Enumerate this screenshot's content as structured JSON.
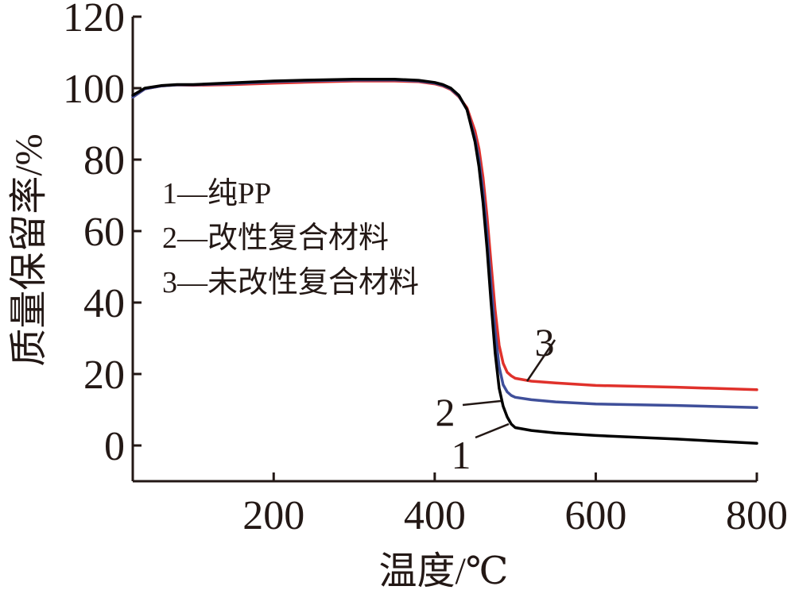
{
  "chart_data": {
    "type": "line",
    "xlabel": "温度/℃",
    "ylabel": "质量保留率/%",
    "xlim": [
      25,
      800
    ],
    "ylim": [
      -10,
      120
    ],
    "xticks": [
      200,
      400,
      600,
      800
    ],
    "xtick_labels": [
      "200",
      "400",
      "600",
      "800"
    ],
    "yticks": [
      0,
      20,
      40,
      60,
      80,
      100,
      120
    ],
    "ytick_labels": [
      "0",
      "20",
      "40",
      "60",
      "80",
      "100",
      "120"
    ],
    "grid": false,
    "legend_position": "upper-left",
    "legend": [
      {
        "label": "1—纯PP"
      },
      {
        "label": "2—改性复合材料"
      },
      {
        "label": "3—未改性复合材料"
      }
    ],
    "series": [
      {
        "name": "1",
        "label": "1",
        "color": "#000000",
        "x": [
          25,
          40,
          60,
          80,
          100,
          150,
          200,
          250,
          300,
          350,
          380,
          400,
          410,
          420,
          430,
          440,
          450,
          455,
          460,
          465,
          470,
          475,
          480,
          485,
          490,
          495,
          500,
          520,
          550,
          600,
          700,
          800
        ],
        "y": [
          98,
          100,
          100.7,
          101,
          101,
          101.5,
          102,
          102.3,
          102.5,
          102.5,
          102.2,
          101.6,
          101,
          100,
          98,
          94,
          85,
          78,
          68,
          55,
          40,
          26,
          16,
          11,
          8,
          6,
          5,
          4.2,
          3.5,
          2.8,
          1.8,
          0.6
        ]
      },
      {
        "name": "2",
        "label": "2",
        "color": "#3f4f9a",
        "x": [
          25,
          40,
          60,
          80,
          100,
          150,
          200,
          250,
          300,
          350,
          380,
          400,
          410,
          420,
          430,
          440,
          450,
          455,
          460,
          465,
          470,
          475,
          480,
          485,
          490,
          495,
          500,
          520,
          550,
          600,
          700,
          800
        ],
        "y": [
          97.5,
          99.8,
          100.6,
          100.9,
          100.9,
          101.3,
          101.8,
          102.1,
          102.3,
          102.3,
          102,
          101.4,
          100.8,
          99.8,
          97.8,
          94,
          86,
          80,
          71,
          59,
          45,
          32,
          22,
          17,
          15,
          14,
          13.5,
          12.8,
          12.2,
          11.6,
          11.2,
          10.6
        ]
      },
      {
        "name": "3",
        "label": "3",
        "color": "#e0312b",
        "x": [
          25,
          40,
          60,
          80,
          100,
          150,
          200,
          250,
          300,
          350,
          380,
          400,
          410,
          420,
          430,
          440,
          450,
          455,
          460,
          465,
          470,
          475,
          480,
          485,
          490,
          495,
          500,
          520,
          550,
          600,
          700,
          800
        ],
        "y": [
          97.5,
          99.8,
          100.6,
          100.9,
          100.8,
          101,
          101.4,
          101.7,
          102,
          102,
          101.8,
          101.2,
          100.6,
          99.6,
          97.6,
          94.5,
          88,
          83,
          75,
          64,
          51,
          38,
          28,
          23,
          20.5,
          19.5,
          18.8,
          18,
          17.5,
          16.8,
          16.3,
          15.6
        ]
      }
    ],
    "annotations": [
      {
        "text": "3",
        "series": "3"
      },
      {
        "text": "2",
        "series": "2"
      },
      {
        "text": "1",
        "series": "1"
      }
    ]
  }
}
